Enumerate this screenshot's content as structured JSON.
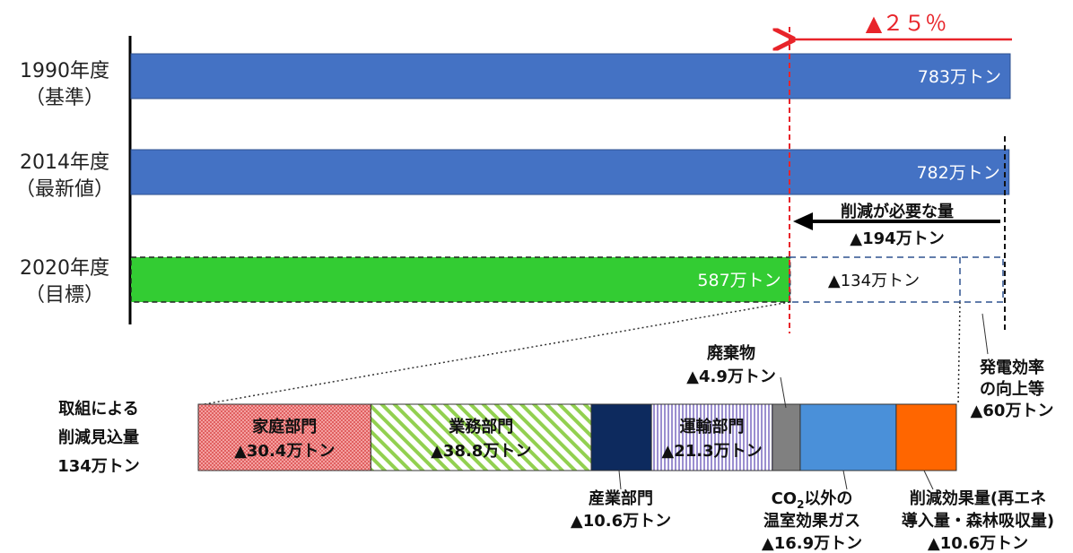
{
  "chart_data": {
    "type": "bar",
    "orientation": "horizontal",
    "categories": [
      {
        "year": "1990年度",
        "sub": "（基準）"
      },
      {
        "year": "2014年度",
        "sub": "（最新値）"
      },
      {
        "year": "2020年度",
        "sub": "（目標）"
      }
    ],
    "values": [
      783,
      782,
      587
    ],
    "value_labels": [
      "783万トン",
      "782万トン",
      "587万トン"
    ],
    "colors": [
      "#4472C4",
      "#4472C4",
      "#33CC33"
    ],
    "reduction_pct_label": "▲２５％",
    "required_label": "削減が必要な量",
    "required_value_label": "▲194万トン",
    "target_remaining_label": "▲134万トン",
    "efficiency_label_lines": [
      "発電効率",
      "の向上等",
      "▲60万トン"
    ],
    "breakdown_title_lines": [
      "取組による",
      "削減見込量",
      "134万トン"
    ],
    "breakdown": [
      {
        "name": "家庭部門",
        "value": 30.4,
        "label": "▲30.4万トン",
        "color": "#F08080",
        "pattern": "dots"
      },
      {
        "name": "業務部門",
        "value": 38.8,
        "label": "▲38.8万トン",
        "color": "#92D050",
        "pattern": "diag"
      },
      {
        "name": "産業部門",
        "value": 10.6,
        "label": "▲10.6万トン",
        "color": "#0D2A5E",
        "pattern": "solid"
      },
      {
        "name": "運輸部門",
        "value": 21.3,
        "label": "▲21.3万トン",
        "color": "#B4A7D6",
        "pattern": "vert"
      },
      {
        "name": "廃棄物",
        "value": 4.9,
        "label": "▲4.9万トン",
        "color": "#808080",
        "pattern": "solid"
      },
      {
        "name": "CO2以外の温室効果ガス",
        "value": 16.9,
        "label": "▲16.9万トン",
        "color": "#4A90D9",
        "pattern": "solid"
      },
      {
        "name": "削減効果量(再エネ導入量・森林吸収量)",
        "value": 10.6,
        "label": "▲10.6万トン",
        "color": "#FF6600",
        "pattern": "solid"
      }
    ],
    "breakdown_label_lines": {
      "industry": [
        "産業部門",
        "▲10.6万トン"
      ],
      "waste": [
        "廃棄物",
        "▲4.9万トン"
      ],
      "ghg": [
        "CO",
        "2",
        "以外の",
        "温室効果ガス",
        "▲16.9万トン"
      ],
      "renew": [
        "削減効果量(再エネ",
        "導入量・森林吸収量)",
        "▲10.6万トン"
      ]
    }
  }
}
